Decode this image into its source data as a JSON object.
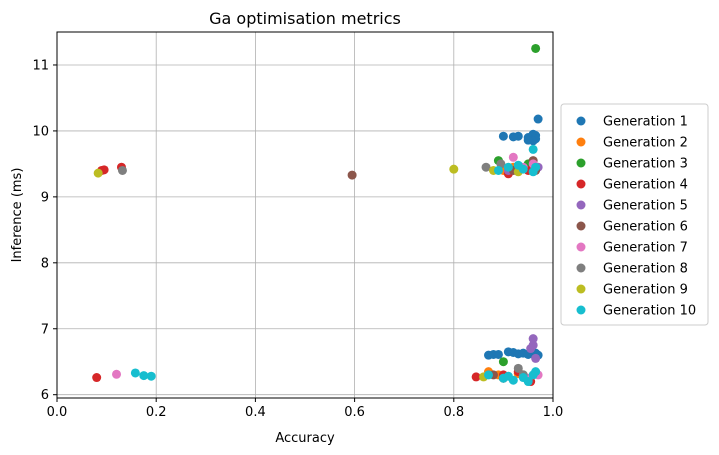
{
  "chart_data": {
    "type": "scatter",
    "title": "Ga optimisation metrics",
    "xlabel": "Accuracy",
    "ylabel": "Inference (ms)",
    "xlim": [
      0.0,
      1.0
    ],
    "ylim": [
      5.95,
      11.5
    ],
    "xticks": [
      "0.0",
      "0.2",
      "0.4",
      "0.6",
      "0.8",
      "1.0"
    ],
    "yticks": [
      "6",
      "7",
      "8",
      "9",
      "10",
      "11"
    ],
    "grid": true,
    "legend_position": "outside-right",
    "series": [
      {
        "name": "Generation 1",
        "color": "#1f77b4",
        "points": [
          [
            0.95,
            9.9
          ],
          [
            0.96,
            9.95
          ],
          [
            0.965,
            9.93
          ],
          [
            0.93,
            9.92
          ],
          [
            0.9,
            9.92
          ],
          [
            0.92,
            9.91
          ],
          [
            0.965,
            9.88
          ],
          [
            0.96,
            9.85
          ],
          [
            0.95,
            9.86
          ],
          [
            0.97,
            10.18
          ],
          [
            0.87,
            6.6
          ],
          [
            0.88,
            6.61
          ],
          [
            0.89,
            6.61
          ],
          [
            0.91,
            6.65
          ],
          [
            0.92,
            6.64
          ],
          [
            0.93,
            6.62
          ],
          [
            0.94,
            6.63
          ],
          [
            0.95,
            6.61
          ],
          [
            0.96,
            6.62
          ],
          [
            0.97,
            6.6
          ],
          [
            0.965,
            6.63
          ]
        ]
      },
      {
        "name": "Generation 2",
        "color": "#ff7f0e",
        "points": [
          [
            0.9,
            9.4
          ],
          [
            0.92,
            9.45
          ],
          [
            0.87,
            6.35
          ],
          [
            0.89,
            6.3
          ],
          [
            0.93,
            6.32
          ]
        ]
      },
      {
        "name": "Generation 3",
        "color": "#2ca02c",
        "points": [
          [
            0.965,
            11.25
          ],
          [
            0.89,
            9.55
          ],
          [
            0.95,
            9.5
          ],
          [
            0.9,
            6.5
          ],
          [
            0.94,
            6.3
          ]
        ]
      },
      {
        "name": "Generation 4",
        "color": "#d62728",
        "points": [
          [
            0.09,
            9.4
          ],
          [
            0.095,
            9.41
          ],
          [
            0.13,
            9.45
          ],
          [
            0.08,
            6.26
          ],
          [
            0.845,
            6.27
          ],
          [
            0.9,
            6.3
          ],
          [
            0.93,
            6.35
          ],
          [
            0.955,
            6.2
          ],
          [
            0.95,
            9.4
          ],
          [
            0.91,
            9.35
          ]
        ]
      },
      {
        "name": "Generation 5",
        "color": "#9467bd",
        "points": [
          [
            0.96,
            6.85
          ],
          [
            0.96,
            6.75
          ],
          [
            0.955,
            6.7
          ],
          [
            0.965,
            6.55
          ],
          [
            0.91,
            9.4
          ],
          [
            0.97,
            9.45
          ]
        ]
      },
      {
        "name": "Generation 6",
        "color": "#8c564b",
        "points": [
          [
            0.595,
            9.33
          ],
          [
            0.965,
            9.4
          ],
          [
            0.96,
            9.55
          ],
          [
            0.92,
            9.4
          ],
          [
            0.88,
            6.3
          ],
          [
            0.9,
            6.25
          ]
        ]
      },
      {
        "name": "Generation 7",
        "color": "#e377c2",
        "points": [
          [
            0.12,
            6.31
          ],
          [
            0.92,
            9.6
          ],
          [
            0.94,
            9.45
          ],
          [
            0.96,
            9.5
          ],
          [
            0.95,
            6.25
          ],
          [
            0.97,
            6.3
          ]
        ]
      },
      {
        "name": "Generation 8",
        "color": "#7f7f7f",
        "points": [
          [
            0.132,
            9.4
          ],
          [
            0.865,
            9.45
          ],
          [
            0.895,
            9.5
          ],
          [
            0.9,
            6.25
          ],
          [
            0.93,
            6.4
          ],
          [
            0.94,
            6.3
          ]
        ]
      },
      {
        "name": "Generation 9",
        "color": "#bcbd22",
        "points": [
          [
            0.083,
            9.36
          ],
          [
            0.8,
            9.42
          ],
          [
            0.86,
            6.27
          ],
          [
            0.88,
            9.4
          ],
          [
            0.93,
            9.38
          ]
        ]
      },
      {
        "name": "Generation 10",
        "color": "#17becf",
        "points": [
          [
            0.158,
            6.33
          ],
          [
            0.175,
            6.29
          ],
          [
            0.19,
            6.28
          ],
          [
            0.96,
            9.72
          ],
          [
            0.965,
            9.45
          ],
          [
            0.96,
            9.38
          ],
          [
            0.91,
            9.45
          ],
          [
            0.89,
            9.4
          ],
          [
            0.94,
            9.42
          ],
          [
            0.93,
            9.48
          ],
          [
            0.87,
            6.3
          ],
          [
            0.9,
            6.25
          ],
          [
            0.92,
            6.22
          ],
          [
            0.94,
            6.26
          ],
          [
            0.96,
            6.3
          ],
          [
            0.965,
            6.35
          ],
          [
            0.95,
            6.2
          ],
          [
            0.91,
            6.28
          ]
        ]
      }
    ]
  }
}
